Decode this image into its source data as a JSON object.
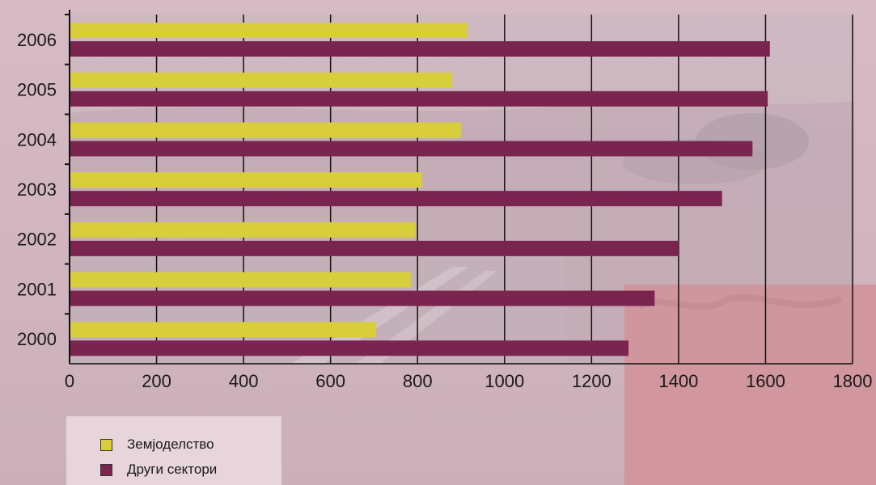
{
  "colors": {
    "agriculture": "#d8cd3a",
    "other": "#7a2450",
    "background": "#d2b3bd",
    "legend_bg": "#e8d5db",
    "accent_panel": "#d1959c"
  },
  "chart_data": {
    "type": "bar",
    "orientation": "horizontal",
    "categories": [
      "2000",
      "2001",
      "2002",
      "2003",
      "2004",
      "2005",
      "2006"
    ],
    "series": [
      {
        "name": "Земјоделство",
        "values": [
          705,
          785,
          795,
          810,
          900,
          880,
          915
        ]
      },
      {
        "name": "Други сектори",
        "values": [
          1285,
          1345,
          1400,
          1500,
          1570,
          1605,
          1610
        ]
      }
    ],
    "xlim": [
      0,
      1800
    ],
    "xticks": [
      "0",
      "200",
      "400",
      "600",
      "800",
      "1000",
      "1200",
      "1400",
      "1600",
      "1800"
    ],
    "grid": true,
    "legend_position": "bottom-left"
  }
}
